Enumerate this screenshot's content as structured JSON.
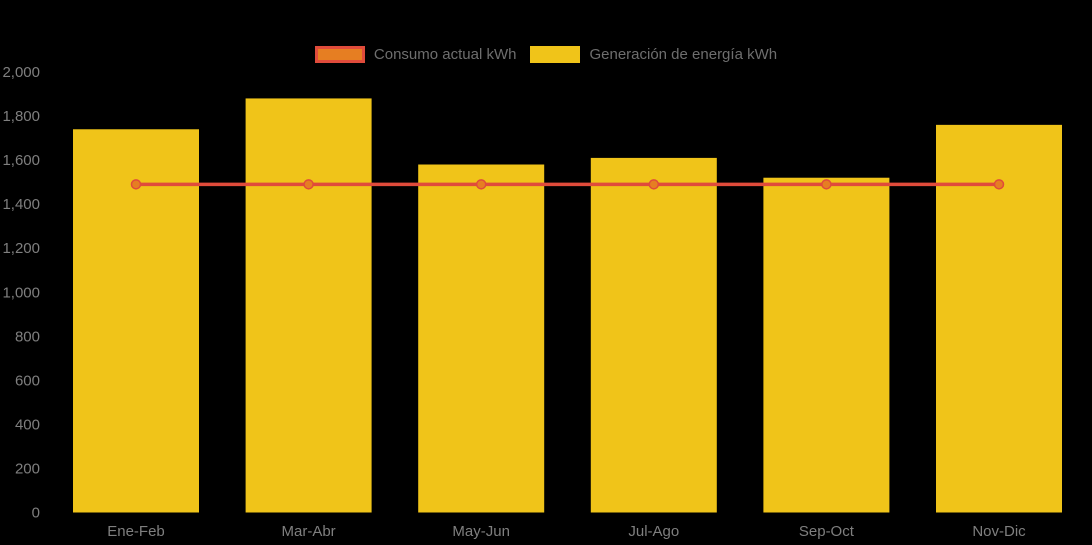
{
  "legend": {
    "items": [
      {
        "label": "Consumo actual kWh"
      },
      {
        "label": "Generación de energía kWh"
      }
    ]
  },
  "colors": {
    "background": "#000000",
    "bar_yellow": "#F0C419",
    "line_red": "#E04B3B",
    "marker_orange": "#E67E22",
    "axis_text": "#7F7F7F",
    "legend_text": "#6E6E6E"
  },
  "chart_data": {
    "type": "bar",
    "categories": [
      "Ene-Feb",
      "Mar-Abr",
      "May-Jun",
      "Jul-Ago",
      "Sep-Oct",
      "Nov-Dic"
    ],
    "series": [
      {
        "name": "Consumo actual kWh",
        "type": "line",
        "values": [
          1490,
          1490,
          1490,
          1490,
          1490,
          1490
        ],
        "color": "#E04B3B",
        "marker_color": "#E67E22"
      },
      {
        "name": "Generación de energía kWh",
        "type": "bar",
        "values": [
          1740,
          1880,
          1580,
          1610,
          1520,
          1760
        ],
        "color": "#F0C419"
      }
    ],
    "title": "",
    "xlabel": "",
    "ylabel": "",
    "ylim": [
      0,
      2000
    ],
    "ytick_step": 200,
    "ytick_labels": [
      "0",
      "200",
      "400",
      "600",
      "800",
      "1,000",
      "1,200",
      "1,400",
      "1,600",
      "1,800",
      "2,000"
    ],
    "grid": false,
    "legend_position": "top"
  }
}
